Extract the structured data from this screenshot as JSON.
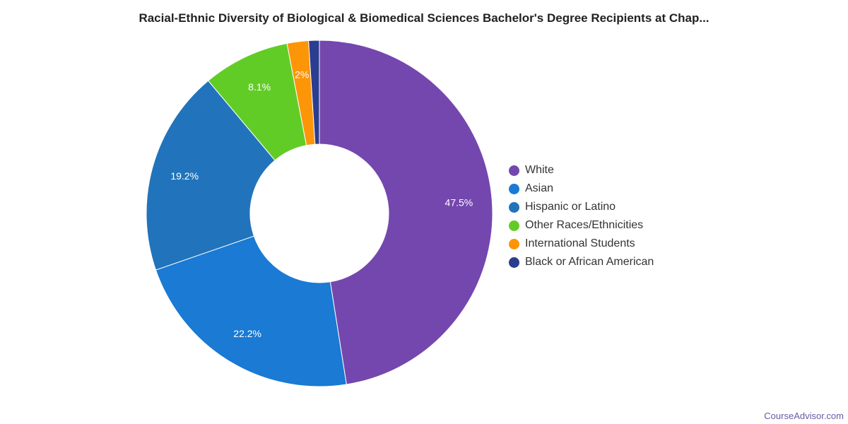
{
  "chart_data": {
    "type": "pie",
    "donut": true,
    "title": "Racial-Ethnic Diversity of Biological & Biomedical Sciences Bachelor's Degree Recipients at Chap...",
    "categories": [
      "White",
      "Asian",
      "Hispanic or Latino",
      "Other Races/Ethnicities",
      "International Students",
      "Black or African American"
    ],
    "values": [
      47.5,
      22.2,
      19.2,
      8.1,
      2.0,
      1.0
    ],
    "labels": [
      "47.5%",
      "22.2%",
      "19.2%",
      "8.1%",
      "2%",
      ""
    ],
    "colors": [
      "#7447ae",
      "#1a7ad4",
      "#2174bb",
      "#62cc27",
      "#fd9508",
      "#2b3d8f"
    ],
    "legend_position": "right"
  },
  "watermark": "CourseAdvisor.com"
}
